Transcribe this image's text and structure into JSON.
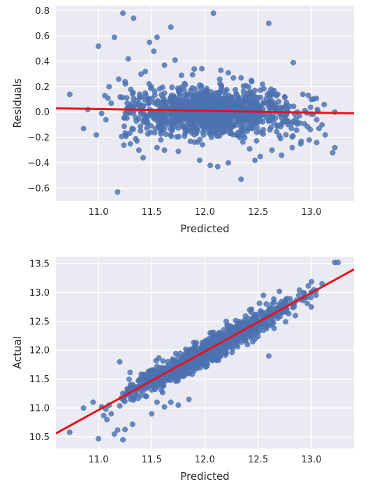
{
  "chart_data": [
    {
      "type": "scatter",
      "xlabel": "Predicted",
      "ylabel": "Residuals",
      "xlim": [
        10.6,
        13.4
      ],
      "ylim": [
        -0.7,
        0.84
      ],
      "xticks": [
        "11.0",
        "11.5",
        "12.0",
        "12.5",
        "13.0"
      ],
      "yticks": [
        "0.8",
        "0.6",
        "0.4",
        "0.2",
        "0.0",
        "−0.2",
        "−0.4",
        "−0.6"
      ],
      "ytick_values": [
        0.8,
        0.6,
        0.4,
        0.2,
        0.0,
        -0.2,
        -0.4,
        -0.6
      ],
      "xtick_values": [
        11.0,
        11.5,
        12.0,
        12.5,
        13.0
      ],
      "grid": true,
      "regression_line": {
        "color": "#e8121c",
        "points": [
          [
            10.6,
            0.03
          ],
          [
            13.4,
            -0.01
          ]
        ]
      },
      "marker_color": "#4c72b0",
      "points": [
        [
          10.73,
          0.14
        ],
        [
          10.86,
          -0.13
        ],
        [
          10.98,
          -0.18
        ],
        [
          11.0,
          0.52
        ],
        [
          11.03,
          -0.01
        ],
        [
          11.07,
          -0.06
        ],
        [
          11.09,
          0.11
        ],
        [
          11.15,
          0.59
        ],
        [
          11.18,
          -0.63
        ],
        [
          11.19,
          0.26
        ],
        [
          11.23,
          0.78
        ],
        [
          11.25,
          0.24
        ],
        [
          11.27,
          0.07
        ],
        [
          11.28,
          0.42
        ],
        [
          11.33,
          0.74
        ],
        [
          11.1,
          0.2
        ],
        [
          11.12,
          0.07
        ],
        [
          11.06,
          0.13
        ],
        [
          10.9,
          0.02
        ],
        [
          11.48,
          0.55
        ],
        [
          11.52,
          0.48
        ],
        [
          11.55,
          0.59
        ],
        [
          11.62,
          0.37
        ],
        [
          11.68,
          0.67
        ],
        [
          11.4,
          0.3
        ],
        [
          11.44,
          0.32
        ],
        [
          11.38,
          -0.3
        ],
        [
          11.42,
          -0.36
        ],
        [
          11.55,
          -0.28
        ],
        [
          11.62,
          -0.3
        ],
        [
          11.75,
          -0.31
        ],
        [
          11.95,
          -0.38
        ],
        [
          12.05,
          -0.42
        ],
        [
          12.12,
          -0.43
        ],
        [
          12.22,
          -0.4
        ],
        [
          12.34,
          -0.53
        ],
        [
          12.47,
          -0.38
        ],
        [
          12.52,
          -0.35
        ],
        [
          12.42,
          -0.29
        ],
        [
          12.63,
          -0.3
        ],
        [
          12.72,
          -0.34
        ],
        [
          12.82,
          -0.28
        ],
        [
          12.9,
          -0.25
        ],
        [
          12.98,
          -0.22
        ],
        [
          13.05,
          -0.24
        ],
        [
          13.2,
          -0.32
        ],
        [
          13.22,
          -0.28
        ],
        [
          13.22,
          0.0
        ],
        [
          13.12,
          0.06
        ],
        [
          13.0,
          0.1
        ],
        [
          12.83,
          0.39
        ],
        [
          12.6,
          0.7
        ],
        [
          12.44,
          0.24
        ],
        [
          12.34,
          0.27
        ],
        [
          12.22,
          0.31
        ],
        [
          12.08,
          0.78
        ],
        [
          12.15,
          0.33
        ],
        [
          11.9,
          0.34
        ],
        [
          11.72,
          0.41
        ],
        [
          11.78,
          0.29
        ],
        [
          12.54,
          0.22
        ],
        [
          12.65,
          0.17
        ],
        [
          12.75,
          0.12
        ],
        [
          12.92,
          0.14
        ],
        [
          13.13,
          -0.18
        ],
        [
          13.1,
          -0.1
        ],
        [
          13.05,
          -0.06
        ],
        [
          11.3,
          -0.25
        ],
        [
          11.26,
          -0.19
        ],
        [
          11.35,
          -0.21
        ]
      ],
      "cloud": {
        "x_center": 12.05,
        "x_sd": 0.38,
        "y_sd": 0.09,
        "n": 1150,
        "x_range": [
          11.2,
          13.1
        ]
      }
    },
    {
      "type": "scatter",
      "xlabel": "Predicted",
      "ylabel": "Actual",
      "xlim": [
        10.6,
        13.4
      ],
      "ylim": [
        10.3,
        13.62
      ],
      "xticks": [
        "11.0",
        "11.5",
        "12.0",
        "12.5",
        "13.0"
      ],
      "yticks": [
        "13.5",
        "13.0",
        "12.5",
        "12.0",
        "11.5",
        "11.0",
        "10.5"
      ],
      "ytick_values": [
        13.5,
        13.0,
        12.5,
        12.0,
        11.5,
        11.0,
        10.5
      ],
      "xtick_values": [
        11.0,
        11.5,
        12.0,
        12.5,
        13.0
      ],
      "grid": true,
      "regression_line": {
        "color": "#e8121c",
        "points": [
          [
            10.6,
            10.56
          ],
          [
            13.4,
            13.4
          ]
        ]
      },
      "marker_color": "#4c72b0",
      "points": [
        [
          10.73,
          10.58
        ],
        [
          10.86,
          11.0
        ],
        [
          10.95,
          11.1
        ],
        [
          11.0,
          10.47
        ],
        [
          11.03,
          11.02
        ],
        [
          11.07,
          10.98
        ],
        [
          11.1,
          11.05
        ],
        [
          11.05,
          10.87
        ],
        [
          11.15,
          10.55
        ],
        [
          11.18,
          10.62
        ],
        [
          11.23,
          10.45
        ],
        [
          11.25,
          10.63
        ],
        [
          11.2,
          11.8
        ],
        [
          11.28,
          11.33
        ],
        [
          11.3,
          11.4
        ],
        [
          11.32,
          10.72
        ],
        [
          11.12,
          10.9
        ],
        [
          11.08,
          10.8
        ],
        [
          11.45,
          11.2
        ],
        [
          11.55,
          11.1
        ],
        [
          11.62,
          11.02
        ],
        [
          11.68,
          11.1
        ],
        [
          11.75,
          11.05
        ],
        [
          11.85,
          11.15
        ],
        [
          11.5,
          10.9
        ],
        [
          12.6,
          11.9
        ],
        [
          12.45,
          12.15
        ],
        [
          12.3,
          12.1
        ],
        [
          13.22,
          13.52
        ],
        [
          13.25,
          13.52
        ],
        [
          13.1,
          13.15
        ],
        [
          12.93,
          12.92
        ],
        [
          12.7,
          13.02
        ],
        [
          12.55,
          12.95
        ],
        [
          12.42,
          12.7
        ],
        [
          12.2,
          12.5
        ],
        [
          12.05,
          12.3
        ],
        [
          11.9,
          12.0
        ],
        [
          11.7,
          11.82
        ],
        [
          11.55,
          11.72
        ],
        [
          11.42,
          11.58
        ],
        [
          11.6,
          11.4
        ],
        [
          11.8,
          11.55
        ],
        [
          12.0,
          11.75
        ],
        [
          12.2,
          11.95
        ],
        [
          12.4,
          12.1
        ],
        [
          12.65,
          12.38
        ],
        [
          12.85,
          12.6
        ],
        [
          13.0,
          12.75
        ],
        [
          12.75,
          12.85
        ]
      ],
      "cloud": {
        "x_center": 12.05,
        "x_sd": 0.38,
        "y_sd": 0.1,
        "n": 1150,
        "x_range": [
          11.2,
          13.1
        ],
        "slope": 1.01,
        "intercept": -0.15
      }
    }
  ]
}
